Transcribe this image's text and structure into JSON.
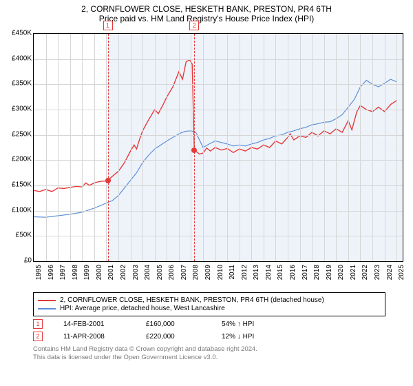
{
  "title": "2, CORNFLOWER CLOSE, HESKETH BANK, PRESTON, PR4 6TH",
  "subtitle": "Price paid vs. HM Land Registry's House Price Index (HPI)",
  "chart": {
    "type": "line",
    "xlim": [
      1995,
      2025.5
    ],
    "ylim": [
      0,
      450000
    ],
    "ytick_step": 50000,
    "yticks": [
      "£0",
      "£50K",
      "£100K",
      "£150K",
      "£200K",
      "£250K",
      "£300K",
      "£350K",
      "£400K",
      "£450K"
    ],
    "xticks": [
      "1995",
      "1996",
      "1997",
      "1998",
      "1999",
      "2000",
      "2001",
      "2002",
      "2003",
      "2004",
      "2005",
      "2006",
      "2007",
      "2008",
      "2009",
      "2010",
      "2011",
      "2012",
      "2013",
      "2014",
      "2015",
      "2016",
      "2017",
      "2018",
      "2019",
      "2020",
      "2021",
      "2022",
      "2023",
      "2024",
      "2025"
    ],
    "grid_color": "#d6d6d6",
    "background_color": "#ffffff",
    "plot_fill_color": "#eef3fa",
    "fill_start_x": 2001.12,
    "fill_end_x": 2025.5,
    "series": {
      "price_paid": {
        "color": "#e63939",
        "width": 1.4,
        "points": [
          [
            1995,
            140000
          ],
          [
            1995.5,
            138000
          ],
          [
            1996,
            142000
          ],
          [
            1996.5,
            138000
          ],
          [
            1997,
            145000
          ],
          [
            1997.5,
            144000
          ],
          [
            1998,
            146000
          ],
          [
            1998.5,
            148000
          ],
          [
            1999,
            147000
          ],
          [
            1999.3,
            155000
          ],
          [
            1999.6,
            150000
          ],
          [
            2000,
            155000
          ],
          [
            2000.5,
            158000
          ],
          [
            2001,
            159000
          ],
          [
            2001.12,
            160000
          ],
          [
            2001.5,
            168000
          ],
          [
            2002,
            178000
          ],
          [
            2002.5,
            195000
          ],
          [
            2003,
            218000
          ],
          [
            2003.3,
            230000
          ],
          [
            2003.5,
            222000
          ],
          [
            2003.8,
            245000
          ],
          [
            2004,
            258000
          ],
          [
            2004.5,
            280000
          ],
          [
            2005,
            300000
          ],
          [
            2005.3,
            292000
          ],
          [
            2005.7,
            310000
          ],
          [
            2006,
            325000
          ],
          [
            2006.5,
            345000
          ],
          [
            2007,
            375000
          ],
          [
            2007.3,
            360000
          ],
          [
            2007.6,
            395000
          ],
          [
            2007.9,
            398000
          ],
          [
            2008.1,
            390000
          ],
          [
            2008.27,
            220000
          ],
          [
            2008.7,
            212000
          ],
          [
            2009,
            214000
          ],
          [
            2009.3,
            224000
          ],
          [
            2009.6,
            218000
          ],
          [
            2010,
            225000
          ],
          [
            2010.5,
            220000
          ],
          [
            2011,
            223000
          ],
          [
            2011.5,
            215000
          ],
          [
            2012,
            222000
          ],
          [
            2012.5,
            218000
          ],
          [
            2013,
            225000
          ],
          [
            2013.5,
            222000
          ],
          [
            2014,
            230000
          ],
          [
            2014.5,
            225000
          ],
          [
            2015,
            238000
          ],
          [
            2015.5,
            232000
          ],
          [
            2016,
            245000
          ],
          [
            2016.2,
            252000
          ],
          [
            2016.5,
            240000
          ],
          [
            2017,
            248000
          ],
          [
            2017.5,
            245000
          ],
          [
            2018,
            255000
          ],
          [
            2018.5,
            248000
          ],
          [
            2019,
            258000
          ],
          [
            2019.5,
            252000
          ],
          [
            2020,
            262000
          ],
          [
            2020.5,
            255000
          ],
          [
            2021,
            278000
          ],
          [
            2021.3,
            260000
          ],
          [
            2021.7,
            295000
          ],
          [
            2022,
            308000
          ],
          [
            2022.5,
            300000
          ],
          [
            2023,
            296000
          ],
          [
            2023.5,
            305000
          ],
          [
            2024,
            296000
          ],
          [
            2024.5,
            310000
          ],
          [
            2025,
            318000
          ]
        ]
      },
      "hpi": {
        "color": "#5b8fd6",
        "width": 1.2,
        "points": [
          [
            1995,
            88000
          ],
          [
            1996,
            87000
          ],
          [
            1997,
            90000
          ],
          [
            1998,
            93000
          ],
          [
            1999,
            97000
          ],
          [
            2000,
            105000
          ],
          [
            2001,
            115000
          ],
          [
            2001.5,
            120000
          ],
          [
            2002,
            130000
          ],
          [
            2002.5,
            145000
          ],
          [
            2003,
            160000
          ],
          [
            2003.5,
            175000
          ],
          [
            2004,
            195000
          ],
          [
            2004.5,
            210000
          ],
          [
            2005,
            222000
          ],
          [
            2005.5,
            230000
          ],
          [
            2006,
            238000
          ],
          [
            2006.5,
            245000
          ],
          [
            2007,
            252000
          ],
          [
            2007.5,
            257000
          ],
          [
            2008,
            258000
          ],
          [
            2008.4,
            255000
          ],
          [
            2008.7,
            240000
          ],
          [
            2009,
            225000
          ],
          [
            2009.5,
            232000
          ],
          [
            2010,
            238000
          ],
          [
            2010.5,
            235000
          ],
          [
            2011,
            232000
          ],
          [
            2011.5,
            228000
          ],
          [
            2012,
            230000
          ],
          [
            2012.5,
            228000
          ],
          [
            2013,
            232000
          ],
          [
            2013.5,
            235000
          ],
          [
            2014,
            240000
          ],
          [
            2014.5,
            243000
          ],
          [
            2015,
            248000
          ],
          [
            2015.5,
            250000
          ],
          [
            2016,
            255000
          ],
          [
            2016.5,
            258000
          ],
          [
            2017,
            262000
          ],
          [
            2017.5,
            265000
          ],
          [
            2018,
            270000
          ],
          [
            2018.5,
            272000
          ],
          [
            2019,
            275000
          ],
          [
            2019.5,
            276000
          ],
          [
            2020,
            282000
          ],
          [
            2020.5,
            290000
          ],
          [
            2021,
            305000
          ],
          [
            2021.5,
            320000
          ],
          [
            2022,
            345000
          ],
          [
            2022.5,
            358000
          ],
          [
            2023,
            350000
          ],
          [
            2023.5,
            345000
          ],
          [
            2024,
            352000
          ],
          [
            2024.5,
            360000
          ],
          [
            2025,
            355000
          ]
        ]
      }
    },
    "sale_markers": [
      {
        "n": "1",
        "x": 2001.12,
        "y": 160000
      },
      {
        "n": "2",
        "x": 2008.27,
        "y": 220000
      }
    ]
  },
  "legend": [
    {
      "color": "#e63939",
      "label": "2, CORNFLOWER CLOSE, HESKETH BANK, PRESTON, PR4 6TH (detached house)"
    },
    {
      "color": "#5b8fd6",
      "label": "HPI: Average price, detached house, West Lancashire"
    }
  ],
  "sales": [
    {
      "n": "1",
      "date": "14-FEB-2001",
      "price": "£160,000",
      "delta": "54% ↑ HPI"
    },
    {
      "n": "2",
      "date": "11-APR-2008",
      "price": "£220,000",
      "delta": "12% ↓ HPI"
    }
  ],
  "footer_l1": "Contains HM Land Registry data © Crown copyright and database right 2024.",
  "footer_l2": "This data is licensed under the Open Government Licence v3.0."
}
